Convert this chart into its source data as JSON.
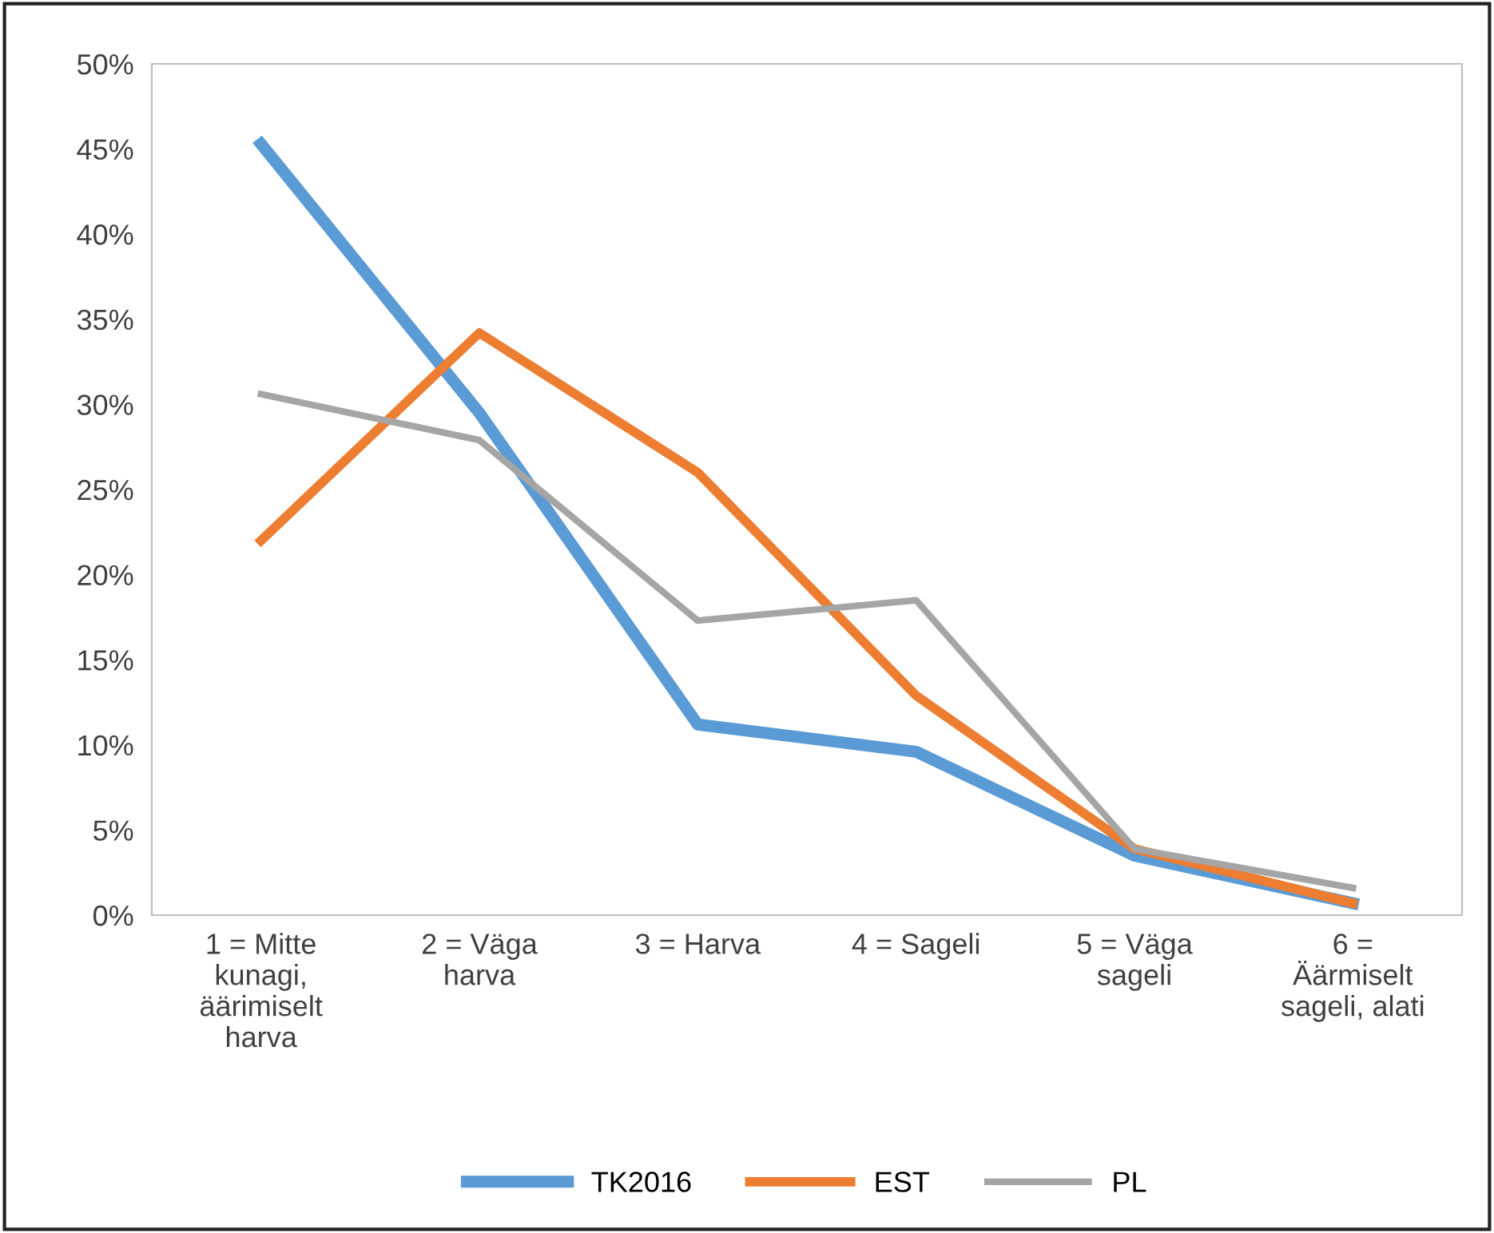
{
  "chart_data": {
    "type": "line",
    "categories": [
      "1 = Mitte\nkunagi,\näärimiselt\nharva",
      "2 = Väga\nharva",
      "3 = Harva",
      "4 = Sageli",
      "5 = Väga\nsageli",
      "6 =\nÄärmiselt\nsageli, alati"
    ],
    "series": [
      {
        "name": "TK2016",
        "color": "#5b9bd5",
        "values": [
          45.3,
          29.5,
          11.2,
          9.6,
          3.5,
          0.7
        ]
      },
      {
        "name": "EST",
        "color": "#ed7d31",
        "values": [
          22.0,
          34.2,
          26.0,
          12.9,
          3.9,
          0.7
        ]
      },
      {
        "name": "PL",
        "color": "#a5a5a5",
        "values": [
          30.6,
          27.9,
          17.3,
          18.5,
          3.9,
          1.6
        ]
      }
    ],
    "ylim": [
      0,
      50
    ],
    "yticks": [
      {
        "value": 0,
        "label": "0%"
      },
      {
        "value": 5,
        "label": "5%"
      },
      {
        "value": 10,
        "label": "10%"
      },
      {
        "value": 15,
        "label": "15%"
      },
      {
        "value": 20,
        "label": "20%"
      },
      {
        "value": 25,
        "label": "25%"
      },
      {
        "value": 30,
        "label": "30%"
      },
      {
        "value": 35,
        "label": "35%"
      },
      {
        "value": 40,
        "label": "40%"
      },
      {
        "value": 45,
        "label": "45%"
      },
      {
        "value": 50,
        "label": "50%"
      }
    ],
    "grid": false,
    "legend": "bottom",
    "marker": "none",
    "line_style": "solid"
  }
}
